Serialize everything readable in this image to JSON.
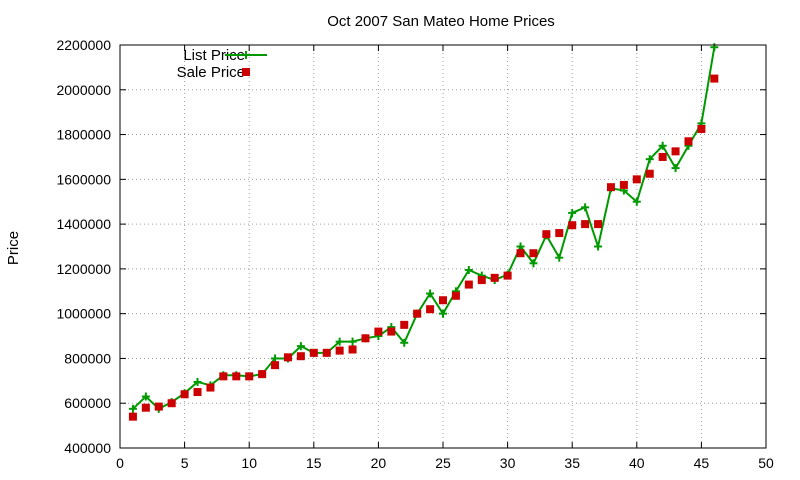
{
  "chart_data": {
    "type": "line",
    "title": "Oct 2007 San Mateo Home Prices",
    "xlabel": "",
    "ylabel": "Price",
    "xlim": [
      0,
      50
    ],
    "ylim": [
      400000,
      2200000
    ],
    "xticks": [
      0,
      5,
      10,
      15,
      20,
      25,
      30,
      35,
      40,
      45,
      50
    ],
    "yticks": [
      400000,
      600000,
      800000,
      1000000,
      1200000,
      1400000,
      1600000,
      1800000,
      2000000,
      2200000
    ],
    "grid": true,
    "legend_position": "top-left",
    "x": [
      1,
      2,
      3,
      4,
      5,
      6,
      7,
      8,
      9,
      10,
      11,
      12,
      13,
      14,
      15,
      16,
      17,
      18,
      19,
      20,
      21,
      22,
      23,
      24,
      25,
      26,
      27,
      28,
      29,
      30,
      31,
      32,
      33,
      34,
      35,
      36,
      37,
      38,
      39,
      40,
      41,
      42,
      43,
      44,
      45,
      46
    ],
    "series": [
      {
        "name": "List Price",
        "style": "line-plus",
        "color": "#009900",
        "values": [
          575000,
          630000,
          575000,
          605000,
          645000,
          695000,
          680000,
          725000,
          725000,
          720000,
          730000,
          800000,
          800000,
          855000,
          825000,
          825000,
          875000,
          875000,
          890000,
          900000,
          940000,
          870000,
          1000000,
          1090000,
          1000000,
          1100000,
          1195000,
          1170000,
          1150000,
          1175000,
          1300000,
          1225000,
          1350000,
          1250000,
          1450000,
          1475000,
          1300000,
          1560000,
          1550000,
          1500000,
          1690000,
          1750000,
          1650000,
          1750000,
          1850000,
          2190000
        ]
      },
      {
        "name": "Sale Price",
        "style": "marker-square",
        "color": "#cc0000",
        "values": [
          540000,
          580000,
          585000,
          600000,
          640000,
          650000,
          670000,
          720000,
          720000,
          720000,
          730000,
          770000,
          805000,
          810000,
          825000,
          825000,
          835000,
          840000,
          890000,
          920000,
          920000,
          950000,
          1000000,
          1020000,
          1060000,
          1080000,
          1130000,
          1150000,
          1160000,
          1170000,
          1270000,
          1270000,
          1355000,
          1360000,
          1395000,
          1400000,
          1400000,
          1565000,
          1575000,
          1600000,
          1625000,
          1700000,
          1725000,
          1770000,
          1825000,
          2050000
        ]
      }
    ]
  }
}
